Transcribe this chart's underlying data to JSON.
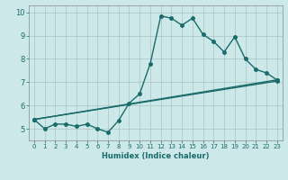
{
  "title": "",
  "xlabel": "Humidex (Indice chaleur)",
  "background_color": "#cce8e8",
  "grid_color": "#b0c8c8",
  "line_color": "#1a6b6b",
  "xlim": [
    -0.5,
    23.5
  ],
  "ylim": [
    4.5,
    10.3
  ],
  "xticks": [
    0,
    1,
    2,
    3,
    4,
    5,
    6,
    7,
    8,
    9,
    10,
    11,
    12,
    13,
    14,
    15,
    16,
    17,
    18,
    19,
    20,
    21,
    22,
    23
  ],
  "yticks": [
    5,
    6,
    7,
    8,
    9,
    10
  ],
  "series1_x": [
    0,
    1,
    2,
    3,
    4,
    5,
    6,
    7,
    8,
    9,
    10,
    11,
    12,
    13,
    14,
    15,
    16,
    17,
    18,
    19,
    20,
    21,
    22,
    23
  ],
  "series1_y": [
    5.4,
    5.0,
    5.2,
    5.2,
    5.1,
    5.2,
    5.0,
    4.85,
    5.35,
    6.1,
    6.5,
    7.8,
    9.85,
    9.75,
    9.45,
    9.75,
    9.05,
    8.75,
    8.3,
    8.95,
    8.0,
    7.55,
    7.4,
    7.1
  ],
  "line2_x": [
    0,
    23
  ],
  "line2_y": [
    5.4,
    7.1
  ],
  "line3_x": [
    0,
    23
  ],
  "line3_y": [
    5.4,
    7.05
  ],
  "marker_size": 2.5,
  "line_width": 1.0,
  "font_color": "#1a6b6b",
  "xlabel_fontsize": 6.0,
  "tick_fontsize_x": 5.0,
  "tick_fontsize_y": 6.0
}
